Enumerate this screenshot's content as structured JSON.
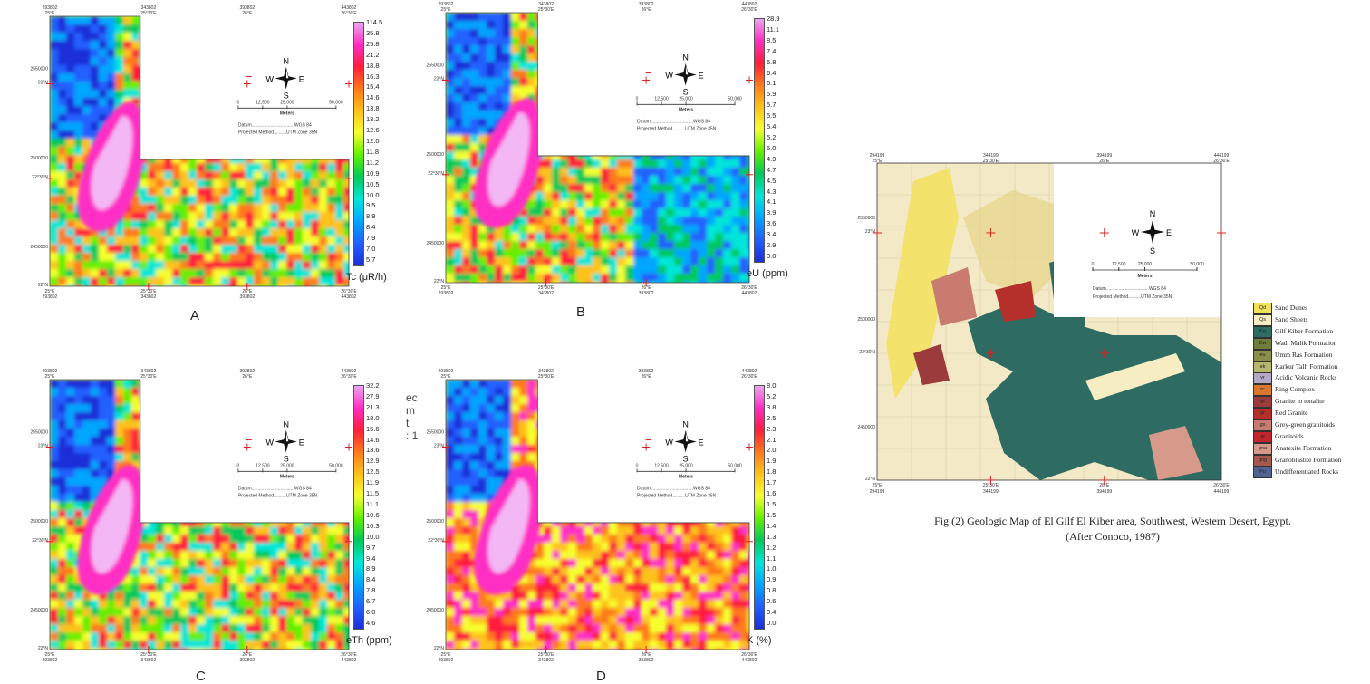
{
  "panels": [
    {
      "id": "A",
      "letter": "A",
      "unit": "Tc (μR/h)",
      "ticks": [
        "114.5",
        "35.8",
        "25.8",
        "21.2",
        "18.8",
        "16.3",
        "15.4",
        "14.6",
        "13.8",
        "13.2",
        "12.6",
        "12.0",
        "11.8",
        "11.2",
        "10.9",
        "10.5",
        "10.0",
        "9.5",
        "8.9",
        "8.4",
        "7.9",
        "7.0",
        "5.7"
      ]
    },
    {
      "id": "B",
      "letter": "B",
      "unit": "eU (ppm)",
      "ticks": [
        "28.9",
        "11.1",
        "8.5",
        "7.4",
        "6.8",
        "6.4",
        "6.1",
        "5.9",
        "5.7",
        "5.5",
        "5.4",
        "5.2",
        "5.0",
        "4.9",
        "4.7",
        "4.5",
        "4.3",
        "4.1",
        "3.9",
        "3.6",
        "3.4",
        "2.9",
        "0.0"
      ]
    },
    {
      "id": "C",
      "letter": "C",
      "unit": "eTh (ppm)",
      "ticks": [
        "32.2",
        "27.9",
        "21.3",
        "18.0",
        "15.6",
        "14.6",
        "13.6",
        "12.9",
        "12.5",
        "11.9",
        "11.5",
        "11.1",
        "10.6",
        "10.3",
        "10.0",
        "9.7",
        "9.4",
        "8.9",
        "8.4",
        "7.8",
        "6.7",
        "6.0",
        "4.6"
      ]
    },
    {
      "id": "D",
      "letter": "D",
      "unit": "K (%)",
      "ticks": [
        "8.0",
        "5.2",
        "3.8",
        "2.5",
        "2.3",
        "2.1",
        "2.0",
        "1.9",
        "1.8",
        "1.7",
        "1.6",
        "1.5",
        "1.5",
        "1.4",
        "1.3",
        "1.2",
        "1.1",
        "1.0",
        "0.9",
        "0.8",
        "0.6",
        "0.4",
        "0.0"
      ]
    }
  ],
  "map_common": {
    "compass": {
      "n": "N",
      "s": "S",
      "e": "E",
      "w": "W"
    },
    "scale_ticks": [
      "0",
      "12,500",
      "25,000",
      "50,000"
    ],
    "scale_unit": "Meters",
    "datum": "Datum..................................WGS 84",
    "projection": "Projected Method..........UTM Zone 35N",
    "top_eastings": [
      "293802",
      "343802",
      "393802",
      "443802"
    ],
    "top_longitudes": [
      "25°E",
      "25°30'E",
      "26°E",
      "26°30'E"
    ],
    "bottom_eastings": [
      "293802",
      "343802",
      "393802",
      "443802"
    ],
    "northings": [
      "2550000",
      "2500000",
      "2450000"
    ],
    "latitudes": [
      "23°N",
      "22°30'N",
      "22°N"
    ]
  },
  "geologic_map": {
    "top_eastings": [
      "294199",
      "344199",
      "394199",
      "444199"
    ],
    "top_longitudes": [
      "25°E",
      "25°30'E",
      "26°E",
      "26°30'E"
    ],
    "bottom_eastings": [
      "294199",
      "344199",
      "394199",
      "444199"
    ],
    "northings": [
      "2550000",
      "2500000",
      "2450000"
    ],
    "latitudes": [
      "23°N",
      "22°30'N",
      "22°N"
    ],
    "datum": "Datum..................................WGS 84",
    "projection": "Projected Method..........UTM Zone 35N"
  },
  "legend": [
    {
      "code": "Qd",
      "label": "Sand Dunes",
      "color": "#f2e15a"
    },
    {
      "code": "Qs",
      "label": "Sand Sheets",
      "color": "#f6eec2"
    },
    {
      "code": "Kg",
      "label": "Gilf Kiber Formation",
      "color": "#2e6b63"
    },
    {
      "code": "Dw",
      "label": "Wadi Malik Formation",
      "color": "#6f7d3a"
    },
    {
      "code": "eu",
      "label": "Umm Ras Formation",
      "color": "#8a8f4c"
    },
    {
      "code": "ek",
      "label": "Karkur Talh Formation",
      "color": "#b7b86e"
    },
    {
      "code": "vr",
      "label": "Acidic Volcanic Rocks",
      "color": "#b3a9c4"
    },
    {
      "code": "rc",
      "label": "Ring Complex",
      "color": "#d9772e"
    },
    {
      "code": "gt",
      "label": "Granite to tonalite",
      "color": "#9c3b3b"
    },
    {
      "code": "gr",
      "label": "Red Granite",
      "color": "#b6302b"
    },
    {
      "code": "gs",
      "label": "Grey-green granitoids",
      "color": "#c97b6f"
    },
    {
      "code": "gi",
      "label": "Granitoids",
      "color": "#c2262c"
    },
    {
      "code": "gna",
      "label": "Anatexite Formation",
      "color": "#d79a8a"
    },
    {
      "code": "gng",
      "label": "Granoblastite Formation",
      "color": "#a35a4d"
    },
    {
      "code": "Pu",
      "label": "Undifferentiated Rocks",
      "color": "#4f6290"
    }
  ],
  "caption": {
    "line1": "Fig (2) Geologic Map of El Gilf El Kiber area, Southwest, Western Desert, Egypt.",
    "line2": "(After Conoco, 1987)"
  },
  "stray_text": {
    "l1": "ec",
    "l2": "m",
    "l3": "t",
    "l4": ": 1"
  },
  "colors": {
    "ramp": [
      "#e9a6f0",
      "#ff2dc4",
      "#ff1d3c",
      "#ff7a1a",
      "#ffc21a",
      "#f5ff2e",
      "#63f000",
      "#00c95a",
      "#00e6d8",
      "#00a6ff",
      "#2060ff",
      "#1a2fd8"
    ],
    "geo_background": "#f3e9c6"
  }
}
